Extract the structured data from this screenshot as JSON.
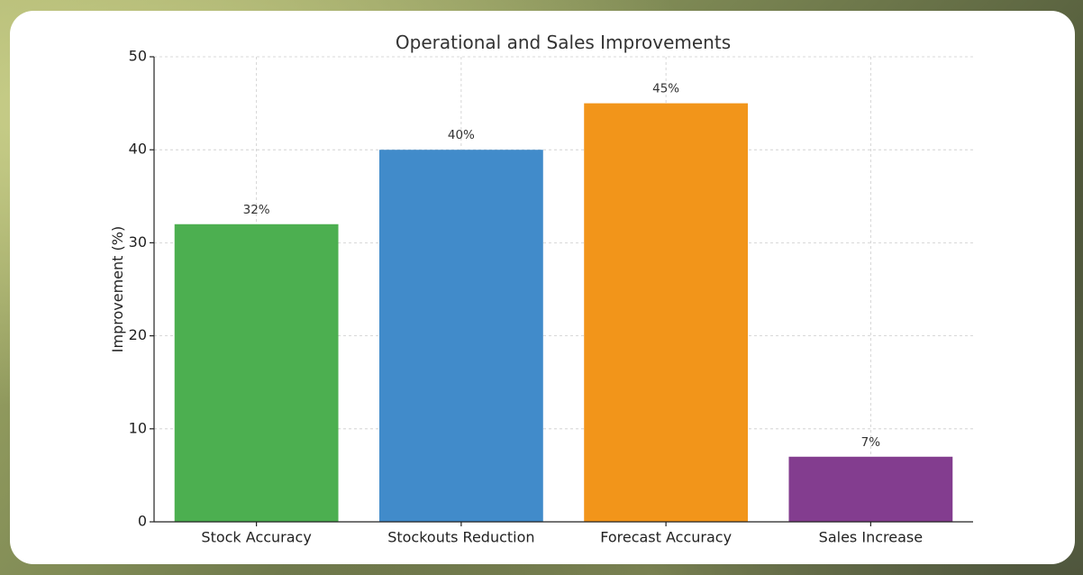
{
  "chart_data": {
    "type": "bar",
    "title": "Operational and Sales Improvements",
    "xlabel": "",
    "ylabel": "Improvement (%)",
    "categories": [
      "Stock Accuracy",
      "Stockouts Reduction",
      "Forecast Accuracy",
      "Sales Increase"
    ],
    "values": [
      32,
      40,
      45,
      7
    ],
    "data_labels": [
      "32%",
      "40%",
      "45%",
      "7%"
    ],
    "colors": [
      "#4caf50",
      "#418bca",
      "#f2951a",
      "#833d8f"
    ],
    "ylim": [
      0,
      50
    ],
    "yticks": [
      0,
      10,
      20,
      30,
      40,
      50
    ],
    "grid": true
  }
}
